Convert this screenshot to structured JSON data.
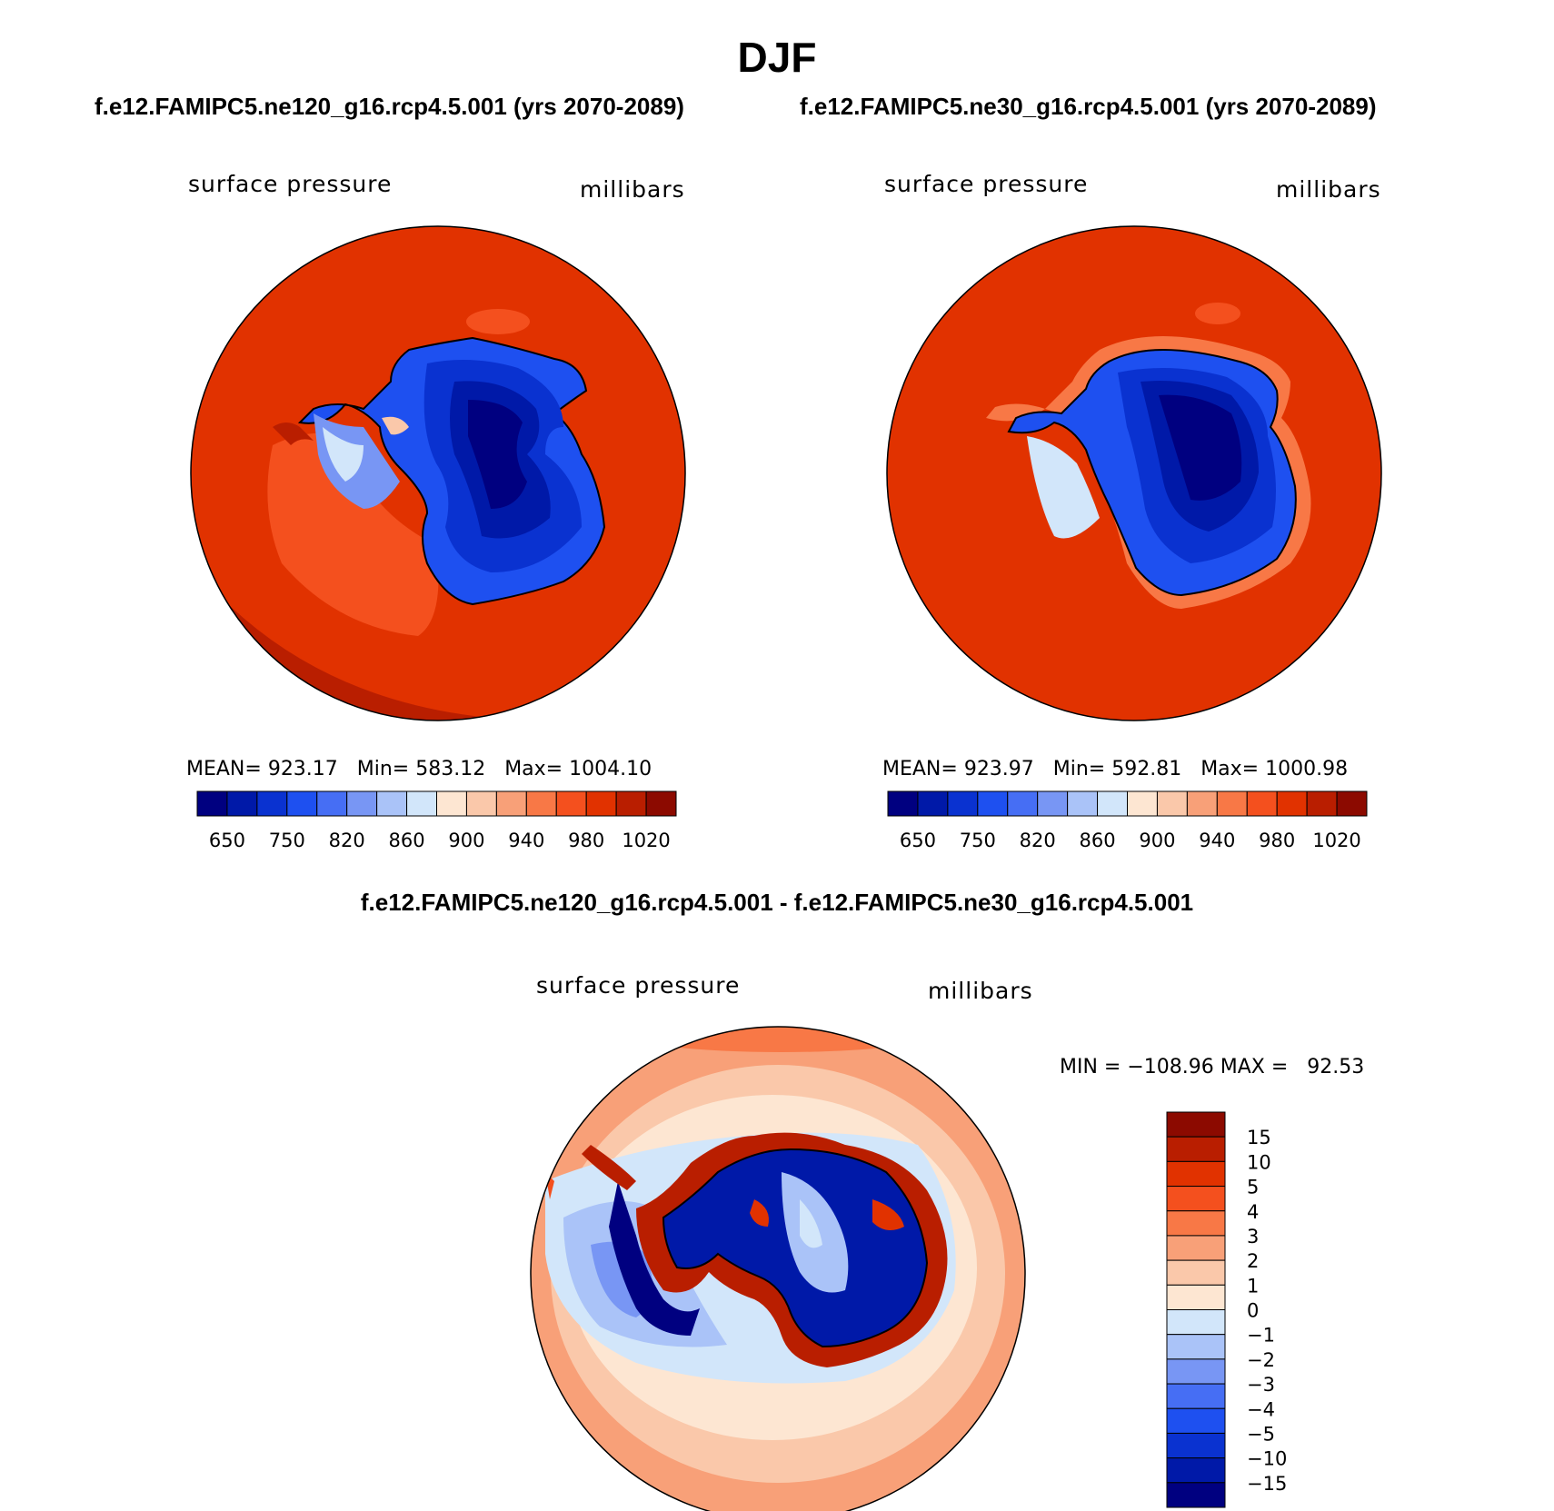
{
  "title": "DJF",
  "diff_title": "f.e12.FAMIPC5.ne120_g16.rcp4.5.001 - f.e12.FAMIPC5.ne30_g16.rcp4.5.001",
  "panels": [
    {
      "case": "f.e12.FAMIPC5.ne120_g16.rcp4.5.001 (yrs 2070-2089)",
      "variable": "surface pressure",
      "units": "millibars",
      "stats": "MEAN= 923.17   Min= 583.12   Max= 1004.10"
    },
    {
      "case": "f.e12.FAMIPC5.ne30_g16.rcp4.5.001 (yrs 2070-2089)",
      "variable": "surface pressure",
      "units": "millibars",
      "stats": "MEAN= 923.97   Min= 592.81   Max= 1000.98"
    },
    {
      "variable": "surface pressure",
      "units": "millibars",
      "stats": "MIN = −108.96 MAX =   92.53"
    }
  ],
  "colorbar_abs": {
    "colors": [
      "#000080",
      "#0019a8",
      "#0a32d0",
      "#1e50f0",
      "#466ef4",
      "#7896f4",
      "#aac3f8",
      "#d2e6fa",
      "#fde6d2",
      "#fac8aa",
      "#f8a078",
      "#f87846",
      "#f4501e",
      "#e13200",
      "#b91e00",
      "#8c0a00"
    ],
    "labels": [
      "650",
      "750",
      "820",
      "860",
      "900",
      "940",
      "980",
      "1020"
    ]
  },
  "colorbar_diff": {
    "colors": [
      "#8c0a00",
      "#b91e00",
      "#e13200",
      "#f4501e",
      "#f87846",
      "#f8a078",
      "#fac8aa",
      "#fde6d2",
      "#d2e6fa",
      "#aac3f8",
      "#7896f4",
      "#466ef4",
      "#1e50f0",
      "#0a32d0",
      "#0019a8",
      "#000080"
    ],
    "labels": [
      "15",
      "10",
      "5",
      "4",
      "3",
      "2",
      "1",
      "0",
      "−1",
      "−2",
      "−3",
      "−4",
      "−5",
      "−10",
      "−15"
    ]
  }
}
